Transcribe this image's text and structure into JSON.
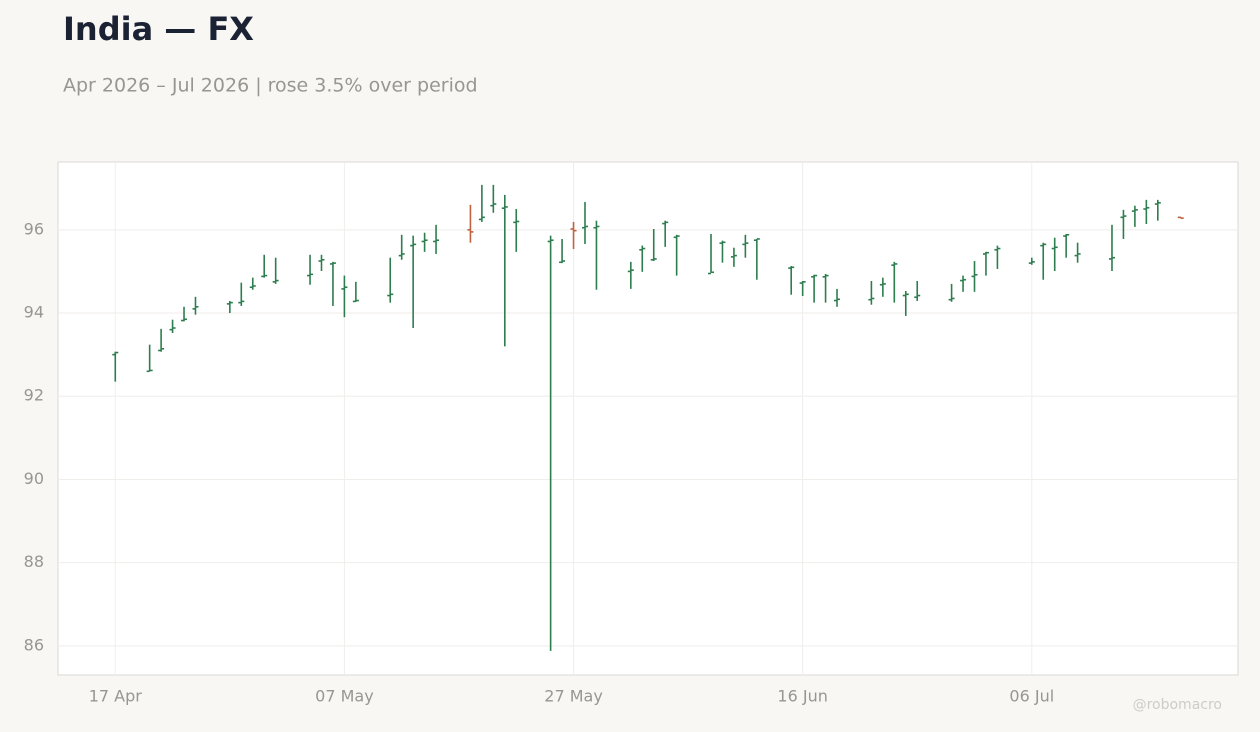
{
  "chart_data": {
    "type": "ohlc",
    "title": "India — FX",
    "subtitle": "Apr 2026 – Jul 2026 | rose 3.5% over period",
    "watermark": "@robomacro",
    "up_color": "#2e7d4f",
    "down_color": "#c0623f",
    "grid": true,
    "x": [
      "17 Apr",
      "20 Apr",
      "21 Apr",
      "22 Apr",
      "23 Apr",
      "24 Apr",
      "27 Apr",
      "28 Apr",
      "29 Apr",
      "30 Apr",
      "1 May",
      "4 May",
      "5 May",
      "6 May",
      "7 May",
      "8 May",
      "11 May",
      "12 May",
      "13 May",
      "14 May",
      "15 May",
      "18 May",
      "19 May",
      "20 May",
      "21 May",
      "22 May",
      "25 May",
      "26 May",
      "27 May",
      "28 May",
      "29 May",
      "1 Jun",
      "2 Jun",
      "3 Jun",
      "4 Jun",
      "5 Jun",
      "8 Jun",
      "9 Jun",
      "10 Jun",
      "11 Jun",
      "12 Jun",
      "15 Jun",
      "16 Jun",
      "17 Jun",
      "18 Jun",
      "19 Jun",
      "22 Jun",
      "23 Jun",
      "24 Jun",
      "25 Jun",
      "26 Jun",
      "29 Jun",
      "30 Jun",
      "1 Jul",
      "2 Jul",
      "3 Jul",
      "6 Jul",
      "7 Jul",
      "8 Jul",
      "9 Jul",
      "10 Jul",
      "13 Jul",
      "14 Jul",
      "15 Jul",
      "16 Jul",
      "17 Jul",
      "19 Jul"
    ],
    "open": [
      93.0,
      92.6,
      93.1,
      93.6,
      93.82,
      94.1,
      94.22,
      94.25,
      94.62,
      94.88,
      94.75,
      94.9,
      95.25,
      95.18,
      94.58,
      94.28,
      94.42,
      95.38,
      95.62,
      95.72,
      95.72,
      96.0,
      96.25,
      96.58,
      96.52,
      96.18,
      95.72,
      95.22,
      96.02,
      96.05,
      96.05,
      95.0,
      95.52,
      95.28,
      96.15,
      95.82,
      94.95,
      95.68,
      95.35,
      95.65,
      95.75,
      95.08,
      94.72,
      94.87,
      94.87,
      94.3,
      94.32,
      94.68,
      95.15,
      94.42,
      94.38,
      94.32,
      94.78,
      94.88,
      95.42,
      95.52,
      95.2,
      95.62,
      95.55,
      95.85,
      95.38,
      95.3,
      96.3,
      96.45,
      96.5,
      96.62,
      96.3
    ],
    "high": [
      93.07,
      93.24,
      93.62,
      93.84,
      94.15,
      94.39,
      94.29,
      94.73,
      94.85,
      95.4,
      95.33,
      95.4,
      95.4,
      95.23,
      94.9,
      94.75,
      95.33,
      95.88,
      95.86,
      95.93,
      96.12,
      96.6,
      97.08,
      97.08,
      96.84,
      96.5,
      95.86,
      95.78,
      96.19,
      96.67,
      96.22,
      95.23,
      95.62,
      96.02,
      96.22,
      95.88,
      95.9,
      95.74,
      95.57,
      95.88,
      95.78,
      95.13,
      94.77,
      94.92,
      94.94,
      94.58,
      94.77,
      94.85,
      95.23,
      94.53,
      94.77,
      94.7,
      94.9,
      95.25,
      95.47,
      95.62,
      95.33,
      95.69,
      95.81,
      95.9,
      95.69,
      96.12,
      96.48,
      96.58,
      96.72,
      96.72,
      96.31
    ],
    "low": [
      92.35,
      92.6,
      93.07,
      93.52,
      93.8,
      93.96,
      94.0,
      94.17,
      94.56,
      94.85,
      94.7,
      94.68,
      95.01,
      94.17,
      93.9,
      94.27,
      94.25,
      95.28,
      93.64,
      95.47,
      95.42,
      95.69,
      96.19,
      96.41,
      93.2,
      95.47,
      85.88,
      95.2,
      95.54,
      95.66,
      94.56,
      94.58,
      94.99,
      95.25,
      95.59,
      94.9,
      94.97,
      95.21,
      95.11,
      95.33,
      94.8,
      94.44,
      94.41,
      94.25,
      94.25,
      94.15,
      94.2,
      94.39,
      94.25,
      93.93,
      94.29,
      94.27,
      94.51,
      94.51,
      94.9,
      95.06,
      95.16,
      94.8,
      95.01,
      95.33,
      95.21,
      95.01,
      95.78,
      96.07,
      96.14,
      96.22,
      96.28
    ],
    "close": [
      93.05,
      92.62,
      93.14,
      93.64,
      93.85,
      94.15,
      94.25,
      94.28,
      94.65,
      94.9,
      94.78,
      94.93,
      95.28,
      95.2,
      94.62,
      94.3,
      94.45,
      95.42,
      95.65,
      95.75,
      95.75,
      95.95,
      96.3,
      96.62,
      96.55,
      96.2,
      95.75,
      95.25,
      95.98,
      96.08,
      96.08,
      95.03,
      95.55,
      95.3,
      96.18,
      95.85,
      94.98,
      95.7,
      95.38,
      95.68,
      95.78,
      95.1,
      94.75,
      94.9,
      94.9,
      94.33,
      94.35,
      94.7,
      95.18,
      94.45,
      94.42,
      94.35,
      94.8,
      94.92,
      95.45,
      95.55,
      95.23,
      95.65,
      95.58,
      95.88,
      95.42,
      95.33,
      96.33,
      96.48,
      96.53,
      96.65,
      96.28
    ],
    "xlim": [
      "12 Apr",
      "24 Jul"
    ],
    "xticks": [
      "17 Apr",
      "07 May",
      "27 May",
      "16 Jun",
      "06 Jul"
    ],
    "ylim": [
      85.3,
      97.63
    ],
    "yticks": [
      86,
      88,
      90,
      92,
      94,
      96
    ]
  }
}
